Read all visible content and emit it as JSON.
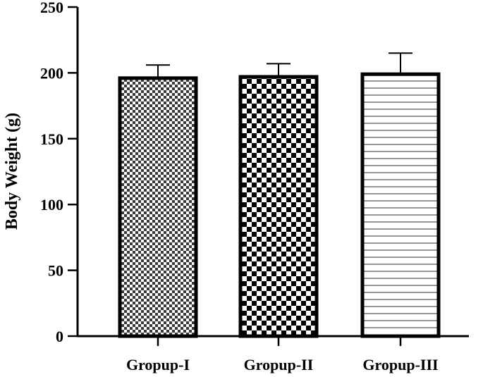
{
  "chart_data": {
    "type": "bar",
    "categories": [
      "Gropup-I",
      "Gropup-II",
      "Gropup-III"
    ],
    "values": [
      196,
      197,
      199
    ],
    "errors": [
      10,
      10,
      16
    ],
    "fill_patterns": [
      "fine-checker",
      "coarse-checker",
      "horizontal-stripes"
    ],
    "title": "",
    "xlabel": "",
    "ylabel": "Body Weight (g)",
    "ylim": [
      0,
      250
    ],
    "yticks": [
      "0",
      "50",
      "100",
      "150",
      "200",
      "250"
    ],
    "grid": false,
    "legend": "none",
    "colors": {
      "bar_stroke": "#000000",
      "bar_fill": "#ffffff",
      "axis": "#000000"
    }
  }
}
